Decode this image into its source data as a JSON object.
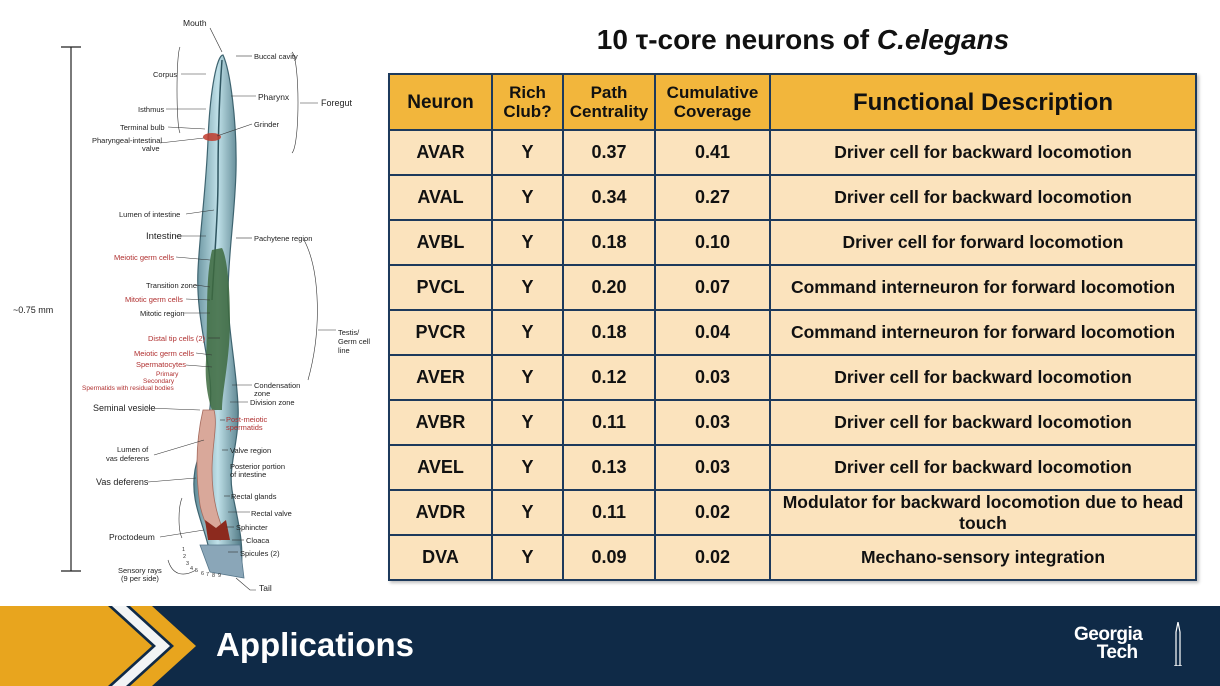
{
  "title": {
    "prefix": "10 ",
    "tau": "τ",
    "middle": "-core neurons of ",
    "species": "C.elegans"
  },
  "table": {
    "headers": [
      "Neuron",
      "Rich Club?",
      "Path Centrality",
      "Cumulative Coverage",
      "Functional Description"
    ],
    "rows": [
      {
        "neuron": "AVAR",
        "rich": "Y",
        "path": "0.37",
        "coverage": "0.41",
        "desc": "Driver cell for backward locomotion"
      },
      {
        "neuron": "AVAL",
        "rich": "Y",
        "path": "0.34",
        "coverage": "0.27",
        "desc": "Driver cell for backward locomotion"
      },
      {
        "neuron": "AVBL",
        "rich": "Y",
        "path": "0.18",
        "coverage": "0.10",
        "desc": "Driver cell for forward locomotion"
      },
      {
        "neuron": "PVCL",
        "rich": "Y",
        "path": "0.20",
        "coverage": "0.07",
        "desc": "Command interneuron for forward locomotion"
      },
      {
        "neuron": "PVCR",
        "rich": "Y",
        "path": "0.18",
        "coverage": "0.04",
        "desc": "Command interneuron for forward locomotion"
      },
      {
        "neuron": "AVER",
        "rich": "Y",
        "path": "0.12",
        "coverage": "0.03",
        "desc": "Driver cell for backward locomotion"
      },
      {
        "neuron": "AVBR",
        "rich": "Y",
        "path": "0.11",
        "coverage": "0.03",
        "desc": "Driver cell for backward locomotion"
      },
      {
        "neuron": "AVEL",
        "rich": "Y",
        "path": "0.13",
        "coverage": "0.03",
        "desc": "Driver cell for backward locomotion"
      },
      {
        "neuron": "AVDR",
        "rich": "Y",
        "path": "0.11",
        "coverage": "0.02",
        "desc": "Modulator for backward locomotion due to head touch"
      },
      {
        "neuron": "DVA",
        "rich": "Y",
        "path": "0.09",
        "coverage": "0.02",
        "desc": "Mechano-sensory integration"
      }
    ]
  },
  "diagram": {
    "length_label": "~0.75 mm",
    "labels_left": [
      "Corpus",
      "Isthmus",
      "Terminal bulb",
      "Pharyngeal-intestinal",
      "valve",
      "Lumen of intestine",
      "Intestine",
      "Meiotic germ cells",
      "Transition zone",
      "Mitotic germ cells",
      "Mitotic region",
      "Distal tip cells (2)",
      "Meiotic germ cells",
      "Spermatocytes",
      "Primary",
      "Secondary",
      "Spermatids with residual bodies",
      "Seminal vesicle",
      "Lumen of",
      "vas deferens",
      "Vas deferens",
      "Proctodeum",
      "Sensory rays",
      "(9 per side)"
    ],
    "labels_right": [
      "Mouth",
      "Buccal cavity",
      "Pharynx",
      "Foregut",
      "Grinder",
      "Pachytene region",
      "Testis/",
      "Germ cell",
      "line",
      "Condensation",
      "zone",
      "Division zone",
      "Post-meiotic",
      "spermatids",
      "Valve region",
      "Posterior portion",
      "of intestine",
      "Rectal glands",
      "Rectal valve",
      "Sphincter",
      "Cloaca",
      "Spicules (2)",
      "Tail"
    ],
    "ray_numbers": [
      "1",
      "2",
      "3",
      "4",
      "5",
      "6",
      "7",
      "8",
      "9"
    ]
  },
  "footer": {
    "title": "Applications",
    "logo_line1": "Georgia",
    "logo_line2": "Tech"
  },
  "colors": {
    "header_bg": "#f2b63c",
    "cell_bg": "#fbe3bd",
    "border": "#1d3a5c",
    "footer_bg": "#0f2a47",
    "chevron": "#e8a51e"
  }
}
